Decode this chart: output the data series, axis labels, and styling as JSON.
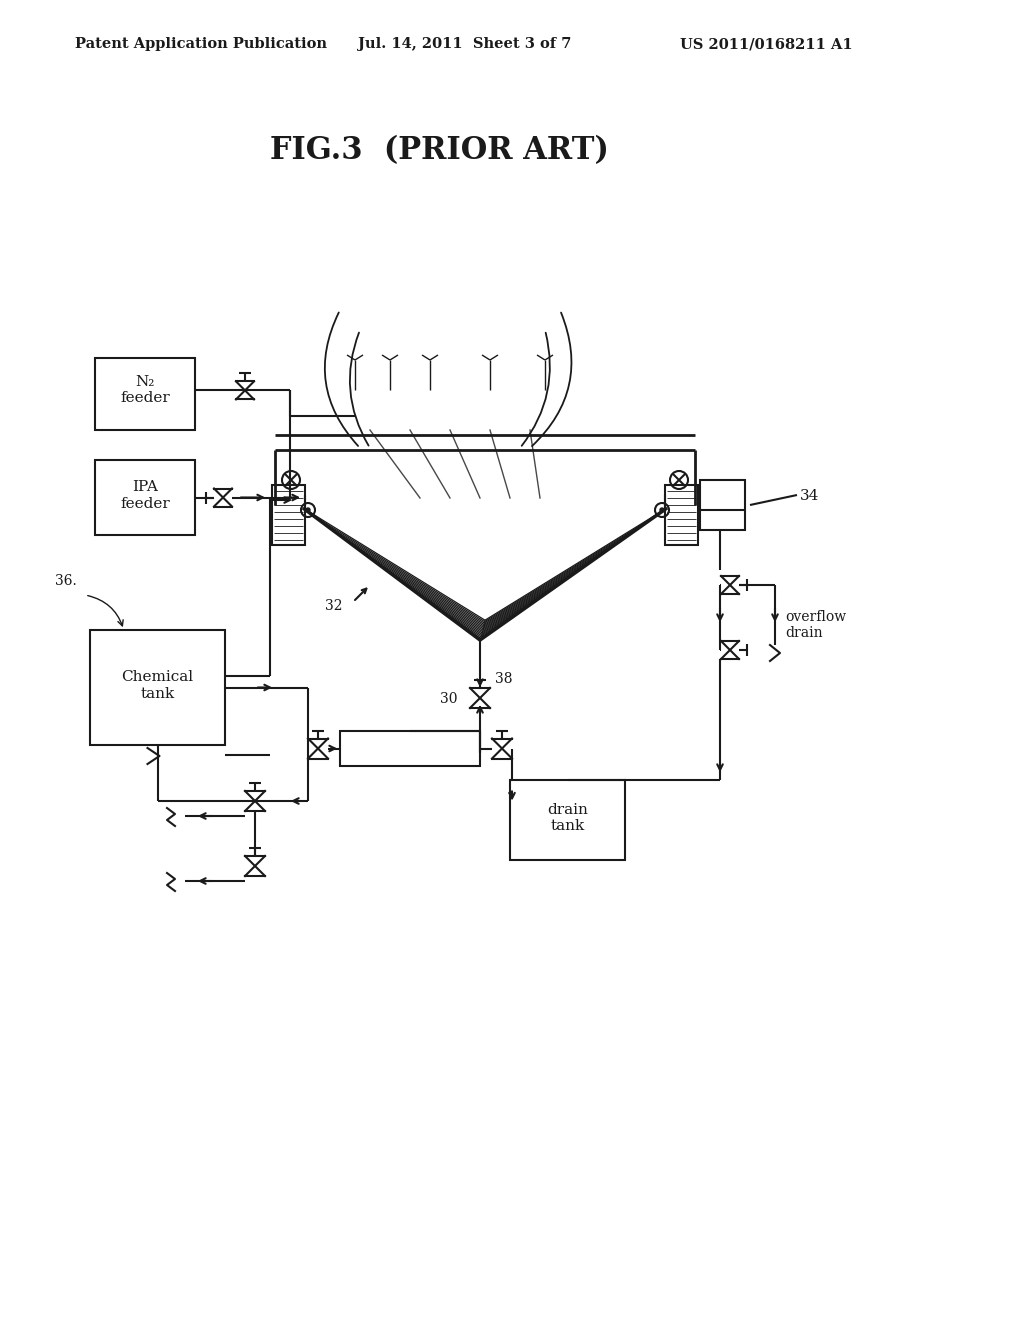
{
  "bg_color": "#ffffff",
  "line_color": "#1a1a1a",
  "title_text": "FIG.3  (PRIOR ART)",
  "header_left": "Patent Application Publication",
  "header_mid": "Jul. 14, 2011  Sheet 3 of 7",
  "header_right": "US 2011/0168211 A1",
  "labels": {
    "n2_feeder": "N₂\nfeeder",
    "ipa_feeder": "IPA\nfeeder",
    "chemical_tank": "Chemical\ntank",
    "drain_tank": "drain\ntank",
    "overflow_drain": "overflow\ndrain",
    "num_34": "34",
    "num_36": "36.",
    "num_30": "30",
    "num_32": "32",
    "num_38": "38"
  }
}
